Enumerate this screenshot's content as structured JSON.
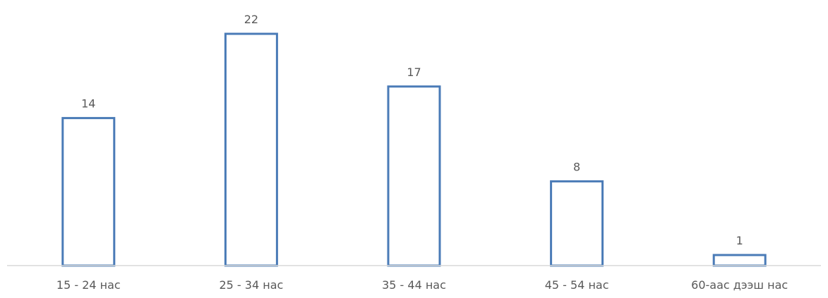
{
  "chart_data": {
    "type": "bar",
    "categories": [
      "15 - 24 нас",
      "25 - 34 нас",
      "35 - 44 нас",
      "45 - 54 нас",
      "60-аас дээш нас"
    ],
    "values": [
      14,
      22,
      17,
      8,
      1
    ],
    "data_labels": [
      "14",
      "22",
      "17",
      "8",
      "1"
    ],
    "title": "",
    "xlabel": "",
    "ylabel": "",
    "ylim": [
      0,
      22
    ],
    "grid": false,
    "legend": "none",
    "bar_style": "outline",
    "bar_color": "#4a7bb7",
    "axis_color": "#d9d9d9",
    "text_color": "#595959"
  }
}
